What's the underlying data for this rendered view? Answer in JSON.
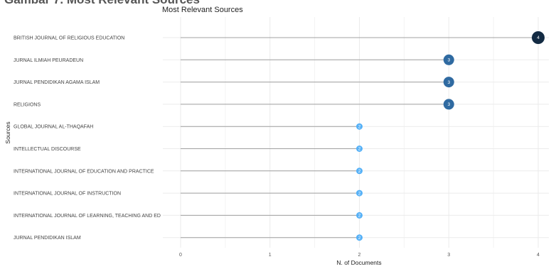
{
  "figure_heading": "Gambar 7. Most Relevant Sources",
  "chart_data": {
    "type": "scatter",
    "style": "lollipop",
    "title": "Most Relevant Sources",
    "xlabel": "N. of Documents",
    "ylabel": "Sources",
    "xlim": [
      0,
      4
    ],
    "x_ticks": [
      0,
      1,
      2,
      3,
      4
    ],
    "grid": true,
    "categories": [
      "BRITISH JOURNAL OF RELIGIOUS EDUCATION",
      "JURNAL ILMIAH PEURADEUN",
      "JURNAL PENDIDIKAN AGAMA ISLAM",
      "RELIGIONS",
      "GLOBAL JOURNAL AL-THAQAFAH",
      "INTELLECTUAL DISCOURSE",
      "INTERNATIONAL JOURNAL OF EDUCATION AND PRACTICE",
      "INTERNATIONAL JOURNAL OF INSTRUCTION",
      "INTERNATIONAL JOURNAL OF LEARNING, TEACHING AND ED",
      "JURNAL PENDIDIKAN ISLAM"
    ],
    "values": [
      4,
      3,
      3,
      3,
      2,
      2,
      2,
      2,
      2,
      2
    ],
    "colors": {
      "4": "#132b43",
      "3": "#2f6aa1",
      "2": "#56b1f7",
      "stem": "#a0a0a0",
      "grid": "#ebebeb"
    }
  }
}
